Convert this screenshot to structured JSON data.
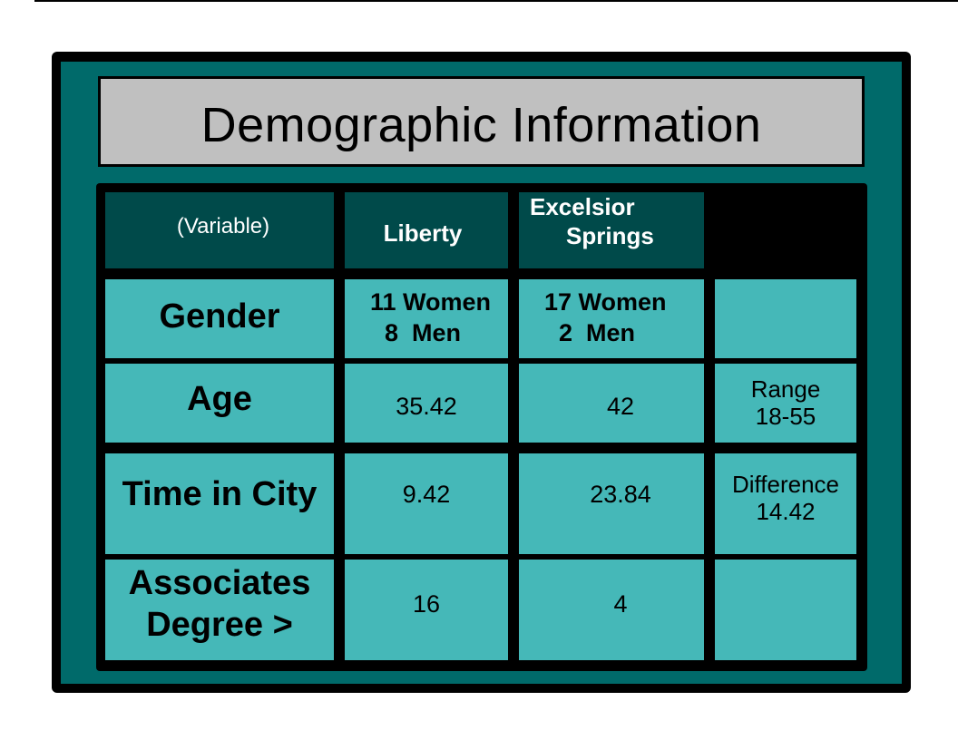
{
  "title": "Demographic Information",
  "table": {
    "headers": {
      "variable": "(Variable)",
      "col1": "Liberty",
      "col2_line1": "Excelsior",
      "col2_line2": "Springs",
      "col3": ""
    },
    "rows": [
      {
        "label": "Gender",
        "liberty": [
          "11 Women",
          "8  Men"
        ],
        "excelsior": [
          "17 Women",
          "2  Men"
        ],
        "note": [
          "",
          ""
        ]
      },
      {
        "label": "Age",
        "liberty": "35.42",
        "excelsior": "42",
        "note": [
          "Range",
          "18-55"
        ]
      },
      {
        "label": "Time in City",
        "liberty": "9.42",
        "excelsior": "23.84",
        "note": [
          "Difference",
          "14.42"
        ]
      },
      {
        "label_line1": "Associates",
        "label_line2": "Degree >",
        "liberty": "16",
        "excelsior": "4",
        "note": [
          "",
          ""
        ]
      }
    ]
  },
  "colors": {
    "slide_background": "#006a6a",
    "header_cell": "#004a4a",
    "body_cell": "#45b8b8",
    "title_box": "#c0c0c0"
  }
}
